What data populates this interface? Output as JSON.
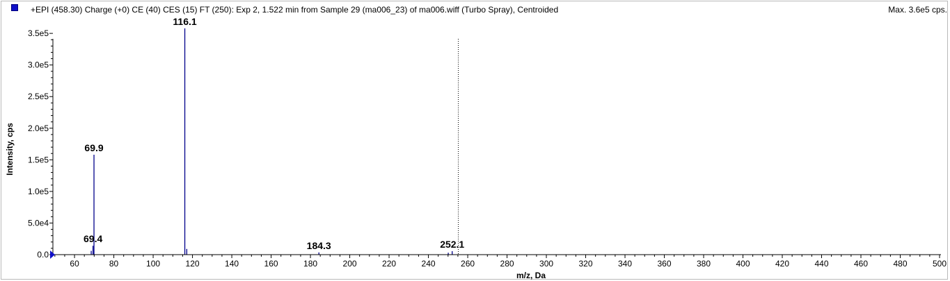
{
  "header": {
    "title": "+EPI (458.30) Charge (+0) CE (40) CES (15) FT (250): Exp 2, 1.522 min from Sample 29 (ma006_23) of ma006.wiff (Turbo Spray), Centroided",
    "max_label": "Max. 3.6e5 cps."
  },
  "colors": {
    "series": "#00008b",
    "legend_swatch": "#1010c8",
    "axis": "#000000"
  },
  "chart_data": {
    "type": "bar",
    "xlabel": "m/z, Da",
    "ylabel": "Intensity, cps",
    "xlim": [
      49,
      500
    ],
    "ylim": [
      0,
      360000
    ],
    "x_ticks": [
      60,
      80,
      100,
      120,
      140,
      160,
      180,
      200,
      220,
      240,
      260,
      280,
      300,
      320,
      340,
      360,
      380,
      400,
      420,
      440,
      460,
      480,
      500
    ],
    "y_ticks": [
      {
        "value": 0,
        "label": "0.0"
      },
      {
        "value": 50000,
        "label": "5.0e4"
      },
      {
        "value": 100000,
        "label": "1.0e5"
      },
      {
        "value": 150000,
        "label": "1.5e5"
      },
      {
        "value": 200000,
        "label": "2.0e5"
      },
      {
        "value": 250000,
        "label": "2.5e5"
      },
      {
        "value": 300000,
        "label": "3.0e5"
      },
      {
        "value": 350000,
        "label": "3.5e5"
      }
    ],
    "peaks": [
      {
        "mz": 68.5,
        "intensity": 6000
      },
      {
        "mz": 69.4,
        "intensity": 14000
      },
      {
        "mz": 69.9,
        "intensity": 158000
      },
      {
        "mz": 116.1,
        "intensity": 358000
      },
      {
        "mz": 117.1,
        "intensity": 9000
      },
      {
        "mz": 184.3,
        "intensity": 3500
      },
      {
        "mz": 250.1,
        "intensity": 3000
      },
      {
        "mz": 252.1,
        "intensity": 5500
      }
    ],
    "peak_labels": [
      {
        "text": "116.1",
        "mz": 116.1,
        "intensity": 358000
      },
      {
        "text": "69.9",
        "mz": 69.9,
        "intensity": 158000
      },
      {
        "text": "69.4",
        "mz": 69.4,
        "intensity": 14000
      },
      {
        "text": "184.3",
        "mz": 184.3,
        "intensity": 3500
      },
      {
        "text": "252.1",
        "mz": 252.1,
        "intensity": 5500
      }
    ],
    "precursor_marker_mz": 255.2
  }
}
